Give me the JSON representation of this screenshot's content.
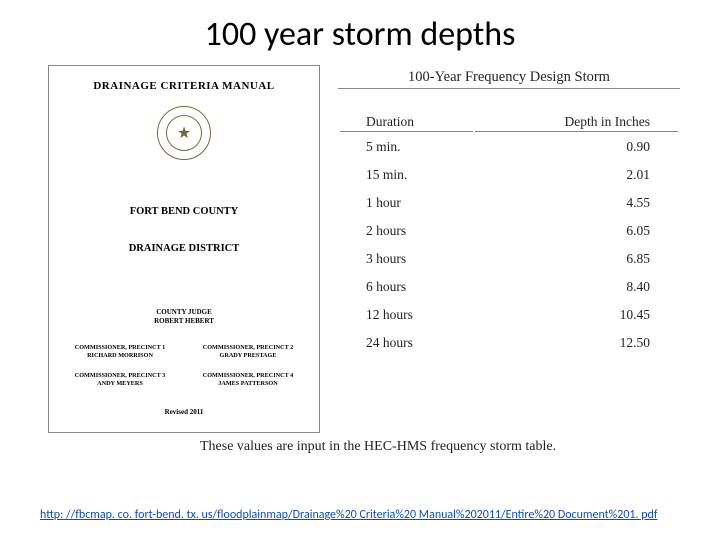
{
  "title": "100 year storm depths",
  "cover": {
    "manual_title": "DRAINAGE CRITERIA MANUAL",
    "seal_glyph": "★",
    "county": "FORT BEND COUNTY",
    "district": "DRAINAGE DISTRICT",
    "judge_label": "COUNTY JUDGE",
    "judge_name": "ROBERT HEBERT",
    "commissioners": [
      {
        "label": "COMMISSIONER, PRECINCT 1",
        "name": "RICHARD MORRISON"
      },
      {
        "label": "COMMISSIONER, PRECINCT 2",
        "name": "GRADY PRESTAGE"
      },
      {
        "label": "COMMISSIONER, PRECINCT 3",
        "name": "ANDY MEYERS"
      },
      {
        "label": "COMMISSIONER, PRECINCT 4",
        "name": "JAMES PATTERSON"
      }
    ],
    "revised": "Revised 2011"
  },
  "storm_table": {
    "heading": "100-Year Frequency Design Storm",
    "col_duration": "Duration",
    "col_depth": "Depth in Inches",
    "rows": [
      {
        "duration": "5 min.",
        "depth": "0.90"
      },
      {
        "duration": "15 min.",
        "depth": "2.01"
      },
      {
        "duration": "1 hour",
        "depth": "4.55"
      },
      {
        "duration": "2 hours",
        "depth": "6.05"
      },
      {
        "duration": "3 hours",
        "depth": "6.85"
      },
      {
        "duration": "6 hours",
        "depth": "8.40"
      },
      {
        "duration": "12 hours",
        "depth": "10.45"
      },
      {
        "duration": "24 hours",
        "depth": "12.50"
      }
    ]
  },
  "footnote": "These values are input in the HEC-HMS frequency storm table.",
  "url": "http: //fbcmap. co. fort-bend. tx. us/floodplainmap/Drainage%20 Criteria%20 Manual%202011/Entire%20 Document%201. pdf"
}
